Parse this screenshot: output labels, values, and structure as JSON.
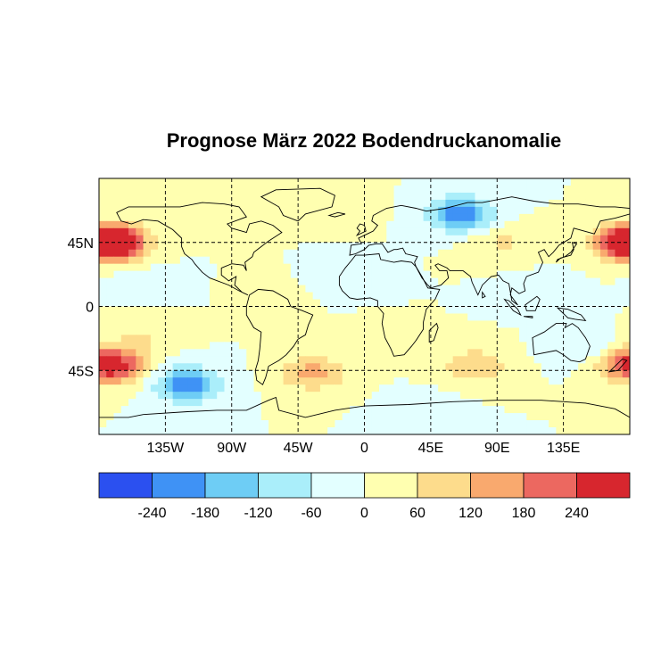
{
  "chart_data": {
    "type": "heatmap",
    "title": "Prognose März 2022 Bodendruckanomalie",
    "xlabel": "",
    "ylabel": "",
    "x_ticks": [
      "135W",
      "90W",
      "45W",
      "0",
      "45E",
      "90E",
      "135E"
    ],
    "x_tick_values": [
      -135,
      -90,
      -45,
      0,
      45,
      90,
      135
    ],
    "y_ticks": [
      "45N",
      "0",
      "45S"
    ],
    "y_tick_values": [
      45,
      0,
      -45
    ],
    "xlim": [
      -180,
      180
    ],
    "ylim": [
      -90,
      90
    ],
    "grid": true,
    "colorbar": {
      "bounds": [
        -300,
        -240,
        -180,
        -120,
        -60,
        0,
        60,
        120,
        180,
        240,
        300
      ],
      "colors": [
        "#2b50f0",
        "#3f92f5",
        "#6ecdf5",
        "#aaeefa",
        "#e3ffff",
        "#ffffb0",
        "#fddc8c",
        "#f9a96e",
        "#ec6860",
        "#d7262e"
      ],
      "tick_labels": [
        "-240",
        "-180",
        "-120",
        "-60",
        "0",
        "60",
        "120",
        "180",
        "240"
      ],
      "tick_values": [
        -240,
        -180,
        -120,
        -60,
        0,
        60,
        120,
        180,
        240
      ]
    },
    "anomaly_centers": [
      {
        "lon": -170,
        "lat": 45,
        "value": 280
      },
      {
        "lon": 178,
        "lat": 45,
        "value": 260
      },
      {
        "lon": -120,
        "lat": -55,
        "value": -230
      },
      {
        "lon": 65,
        "lat": 65,
        "value": -220
      },
      {
        "lon": -168,
        "lat": -42,
        "value": 200
      },
      {
        "lon": 178,
        "lat": -40,
        "value": 160
      },
      {
        "lon": -35,
        "lat": -47,
        "value": 140
      },
      {
        "lon": 75,
        "lat": -42,
        "value": 120
      },
      {
        "lon": -20,
        "lat": 70,
        "value": 60
      },
      {
        "lon": 150,
        "lat": -30,
        "value": -70
      },
      {
        "lon": 95,
        "lat": 45,
        "value": 70
      },
      {
        "lon": -80,
        "lat": 60,
        "value": 40
      },
      {
        "lon": -150,
        "lat": 15,
        "value": -40
      },
      {
        "lon": -20,
        "lat": 20,
        "value": -40
      },
      {
        "lon": 120,
        "lat": 10,
        "value": -40
      },
      {
        "lon": 40,
        "lat": -75,
        "value": -50
      },
      {
        "lon": -150,
        "lat": -20,
        "value": 60
      },
      {
        "lon": 0,
        "lat": -25,
        "value": 30
      },
      {
        "lon": -60,
        "lat": 10,
        "value": 30
      }
    ]
  }
}
